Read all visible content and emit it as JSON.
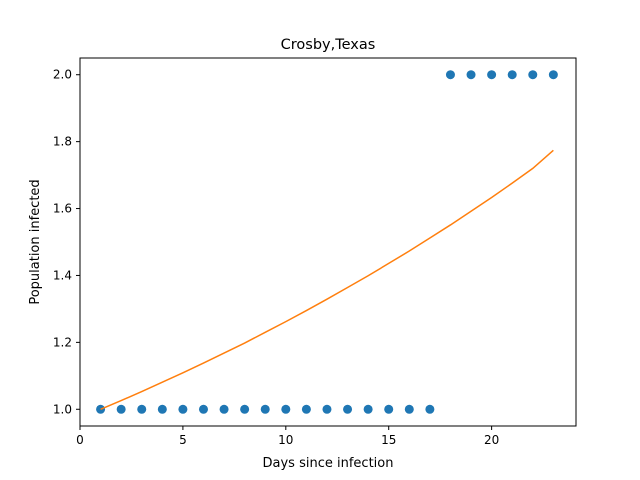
{
  "chart_data": {
    "type": "scatter",
    "title": "Crosby,Texas",
    "xlabel": "Days since infection",
    "ylabel": "Population infected",
    "xlim": [
      0,
      24.1
    ],
    "ylim": [
      0.95,
      2.05
    ],
    "xticks": [
      0,
      5,
      10,
      15,
      20
    ],
    "yticks": [
      1.0,
      1.2,
      1.4,
      1.6,
      1.8,
      2.0
    ],
    "xtick_labels": [
      "0",
      "5",
      "10",
      "15",
      "20"
    ],
    "ytick_labels": [
      "1.0",
      "1.2",
      "1.4",
      "1.6",
      "1.8",
      "2.0"
    ],
    "grid": false,
    "series": [
      {
        "kind": "scatter",
        "color": "#1f77b4",
        "x": [
          1,
          2,
          3,
          4,
          5,
          6,
          7,
          8,
          9,
          10,
          11,
          12,
          13,
          14,
          15,
          16,
          17,
          18,
          19,
          20,
          21,
          22,
          23
        ],
        "y": [
          1,
          1,
          1,
          1,
          1,
          1,
          1,
          1,
          1,
          1,
          1,
          1,
          1,
          1,
          1,
          1,
          1,
          2,
          2,
          2,
          2,
          2,
          2
        ]
      },
      {
        "kind": "line",
        "color": "#ff7f0e",
        "x": [
          1,
          2,
          3,
          4,
          5,
          6,
          7,
          8,
          9,
          10,
          11,
          12,
          13,
          14,
          15,
          16,
          17,
          18,
          19,
          20,
          21,
          22,
          23
        ],
        "y": [
          1.0,
          1.026,
          1.053,
          1.081,
          1.109,
          1.138,
          1.168,
          1.198,
          1.23,
          1.262,
          1.295,
          1.329,
          1.364,
          1.399,
          1.436,
          1.473,
          1.512,
          1.551,
          1.592,
          1.633,
          1.676,
          1.72,
          1.774
        ]
      }
    ]
  }
}
